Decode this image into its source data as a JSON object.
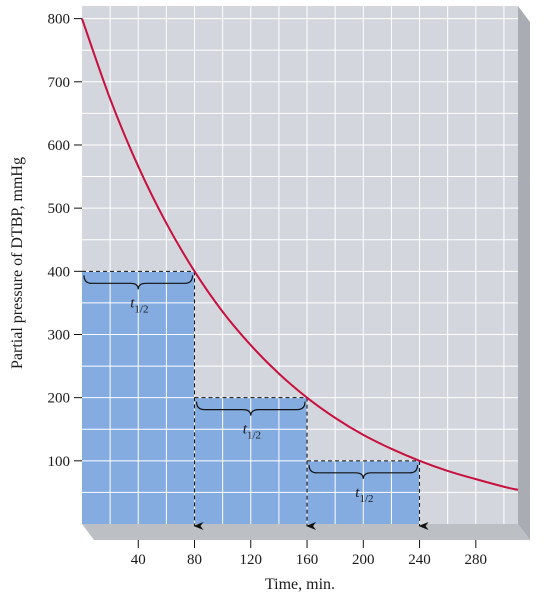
{
  "chart_data": {
    "type": "line",
    "xlabel": "Time, min.",
    "ylabel": "Partial pressure of DTBP, mmHg",
    "xlim": [
      0,
      310
    ],
    "ylim": [
      0,
      820
    ],
    "x_ticks": [
      40,
      80,
      120,
      160,
      200,
      240,
      280
    ],
    "y_ticks": [
      100,
      200,
      300,
      400,
      500,
      600,
      700,
      800
    ],
    "grid": true,
    "series": [
      {
        "x": [
          0,
          20,
          40,
          60,
          80,
          100,
          120,
          140,
          160,
          180,
          200,
          220,
          240,
          260,
          280,
          300,
          310
        ],
        "y": [
          800,
          673,
          566,
          476,
          400,
          336,
          283,
          238,
          200,
          168,
          141,
          119,
          100,
          84,
          71,
          59,
          54
        ]
      }
    ],
    "half_life_steps": [
      {
        "x_start": 0,
        "x_end": 80,
        "level": 400,
        "label": "t",
        "subscript": "1/2"
      },
      {
        "x_start": 80,
        "x_end": 160,
        "level": 200,
        "label": "t",
        "subscript": "1/2"
      },
      {
        "x_start": 160,
        "x_end": 240,
        "level": 100,
        "label": "t",
        "subscript": "1/2"
      }
    ],
    "colors": {
      "plot_background": "#d3d7dd",
      "grid": "#ffffff",
      "curve": "#c8103e",
      "step_fill": "#84ace0",
      "depth_side": "#a9adb3",
      "depth_bottom": "#bcc0c5"
    }
  }
}
